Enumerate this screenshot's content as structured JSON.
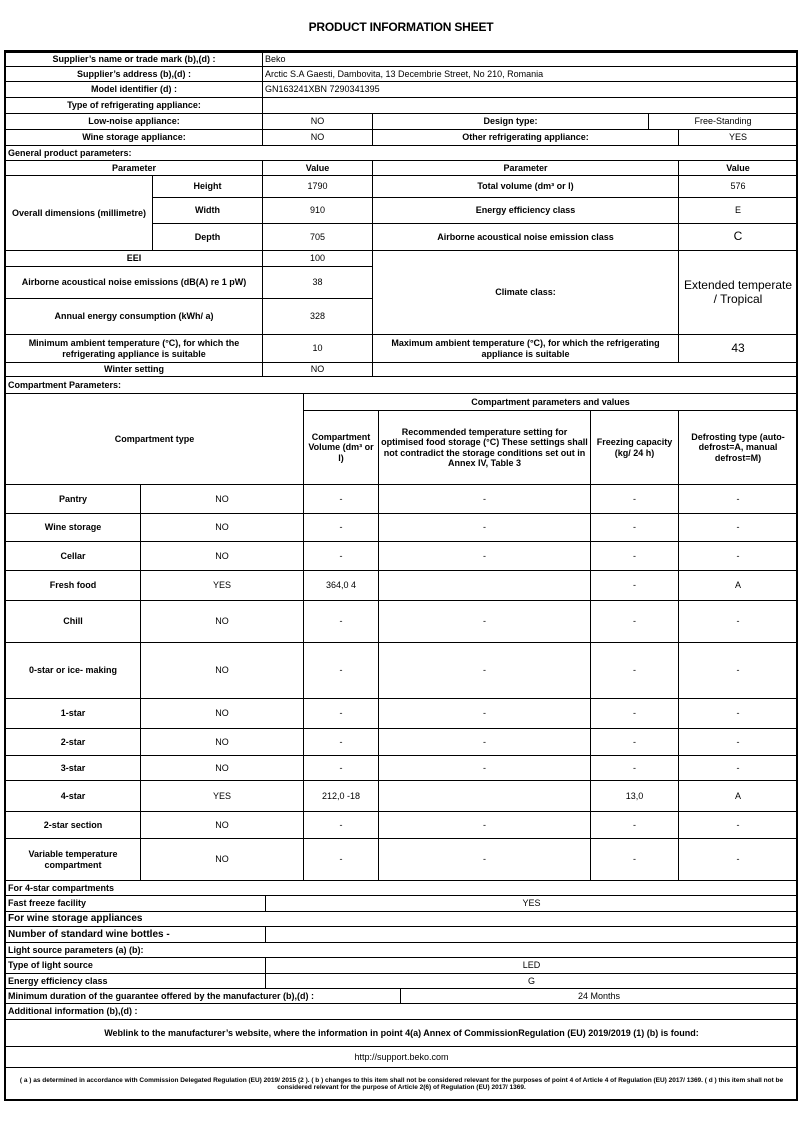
{
  "title": "PRODUCT INFORMATION SHEET",
  "supplier": {
    "name_label": "Supplier’s name or trade mark (b),(d) :",
    "name": "Beko",
    "address_label": "Supplier’s address (b),(d) :",
    "address": "Arctic S.A  Gaesti, Dambovita, 13 Decembrie Street, No 210, Romania",
    "model_label": "Model identifier (d) :",
    "model": "GN163241XBN 7290341395",
    "type_label": "Type of refrigerating appliance:"
  },
  "appliance_type": {
    "low_noise_label": "Low-noise appliance:",
    "low_noise": "NO",
    "design_label": "Design type:",
    "design": "Free-Standing",
    "wine_label": "Wine storage appliance:",
    "wine": "NO",
    "other_label": "Other refrigerating appliance:",
    "other": "YES"
  },
  "general": {
    "heading": "General product parameters:",
    "col_parameter": "Parameter",
    "col_value": "Value",
    "dims_label": "Overall dimensions (millimetre)",
    "height_label": "Height",
    "height": "1790",
    "width_label": "Width",
    "width": "910",
    "depth_label": "Depth",
    "depth": "705",
    "total_volume_label": "Total volume (dm³ or l)",
    "total_volume": "576",
    "energy_class_label": "Energy efficiency class",
    "energy_class": "E",
    "noise_class_label": "Airborne acoustical noise emission class",
    "noise_class": "C",
    "eei_label": "EEI",
    "eei": "100",
    "noise_label": "Airborne acoustical noise emissions (dB(A) re 1 pW)",
    "noise": "38",
    "annual_label": "Annual energy consumption (kWh/ a)",
    "annual": "328",
    "climate_label": "Climate class:",
    "climate": "Extended temperate / Tropical",
    "min_temp_label": "Minimum ambient temperature (°C), for which the refrigerating appliance is suitable",
    "min_temp": "10",
    "max_temp_label": "Maximum ambient temperature (°C), for which the refrigerating appliance is suitable",
    "max_temp": "43",
    "winter_label": "Winter setting",
    "winter": "NO"
  },
  "compartments": {
    "heading": "Compartment Parameters:",
    "type_header": "Compartment type",
    "values_header": "Compartment parameters and values",
    "col_volume": "Compartment Volume (dm³ or l)",
    "col_temp": "Recommended temperature setting for optimised food storage (°C) These settings shall not contradict the storage conditions set out in Annex IV, Table 3",
    "col_freezing": "Freezing capacity (kg/ 24 h)",
    "col_defrost": "Defrosting type (auto-defrost=A, manual defrost=M)",
    "rows": [
      {
        "name": "Pantry",
        "present": "NO",
        "volume": "-",
        "temp": "-",
        "freezing": "-",
        "defrost": "-"
      },
      {
        "name": "Wine storage",
        "present": "NO",
        "volume": "-",
        "temp": "-",
        "freezing": "-",
        "defrost": "-"
      },
      {
        "name": "Cellar",
        "present": "NO",
        "volume": "-",
        "temp": "-",
        "freezing": "-",
        "defrost": "-"
      },
      {
        "name": "Fresh food",
        "present": "YES",
        "volume": "364,0 4",
        "temp": "",
        "freezing": "-",
        "defrost": "A"
      },
      {
        "name": "Chill",
        "present": "NO",
        "volume": "-",
        "temp": "-",
        "freezing": "-",
        "defrost": "-"
      },
      {
        "name": "0-star or ice- making",
        "present": "NO",
        "volume": "-",
        "temp": "-",
        "freezing": "-",
        "defrost": "-"
      },
      {
        "name": "1-star",
        "present": "NO",
        "volume": "-",
        "temp": "-",
        "freezing": "-",
        "defrost": "-"
      },
      {
        "name": "2-star",
        "present": "NO",
        "volume": "-",
        "temp": "-",
        "freezing": "-",
        "defrost": "-"
      },
      {
        "name": "3-star",
        "present": "NO",
        "volume": "-",
        "temp": "-",
        "freezing": "-",
        "defrost": "-"
      },
      {
        "name": "4-star",
        "present": "YES",
        "volume": "212,0 -18",
        "temp": "",
        "freezing": "13,0",
        "defrost": "A"
      },
      {
        "name": "2-star section",
        "present": "NO",
        "volume": "-",
        "temp": "-",
        "freezing": "-",
        "defrost": "-"
      },
      {
        "name": "Variable temperature compartment",
        "present": "NO",
        "volume": "-",
        "temp": "-",
        "freezing": "-",
        "defrost": "-"
      }
    ]
  },
  "four_star": {
    "heading": "For 4-star compartments",
    "fast_freeze_label": "Fast freeze facility",
    "fast_freeze": "YES"
  },
  "wine": {
    "heading": "For wine storage appliances",
    "bottles_label": "Number of standard wine bottles -",
    "bottles": ""
  },
  "light": {
    "heading": "Light source parameters (a) (b):",
    "type_label": "Type of light source",
    "type": "LED",
    "class_label": "Energy efficiency class",
    "class": "G"
  },
  "guarantee": {
    "label": "Minimum duration of the guarantee offered by the manufacturer (b),(d) :",
    "value": "24 Months"
  },
  "additional_label": "Additional information (b),(d) :",
  "weblink": {
    "label": "Weblink to the manufacturer’s website, where the information in point 4(a) Annex of CommissionRegulation (EU) 2019/2019 (1) (b) is found:",
    "url": "http://support.beko.com"
  },
  "footnote": "( a ) as determined in accordance with Commission Delegated Regulation (EU) 2019/ 2015 (2 ). ( b ) changes to this item shall not be considered relevant for the purposes of point 4 of Article 4 of Regulation (EU) 2017/ 1369. ( d ) this item shall not be considered relevant for the purpose of Article 2(6) of Regulation (EU) 2017/ 1369."
}
